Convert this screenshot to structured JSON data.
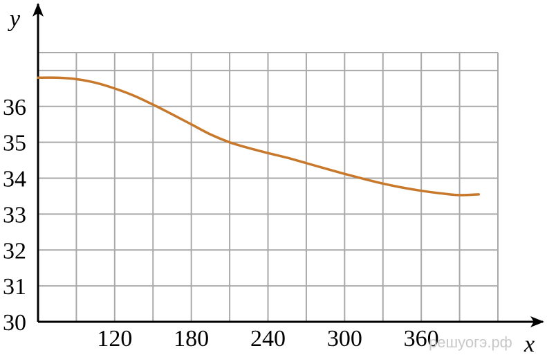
{
  "chart_data": {
    "type": "line",
    "xlabel": "x",
    "ylabel": "y",
    "xlim": [
      60,
      420
    ],
    "ylim": [
      30,
      37.5
    ],
    "grid": true,
    "x_ticks": [
      120,
      180,
      240,
      300,
      360
    ],
    "x_tick_labels": [
      "120",
      "180",
      "240",
      "300",
      "360"
    ],
    "y_ticks": [
      30,
      31,
      32,
      33,
      34,
      35,
      36
    ],
    "y_tick_labels": [
      "30",
      "31",
      "32",
      "33",
      "34",
      "35",
      "36"
    ],
    "series": [
      {
        "color": "#c8782b",
        "x": [
          60,
          75,
          90,
          105,
          120,
          135,
          150,
          165,
          180,
          195,
          210,
          225,
          240,
          255,
          270,
          285,
          300,
          315,
          330,
          345,
          360,
          375,
          390,
          405
        ],
        "y": [
          36.8,
          36.8,
          36.76,
          36.66,
          36.5,
          36.3,
          36.05,
          35.78,
          35.5,
          35.22,
          35.0,
          34.84,
          34.7,
          34.57,
          34.42,
          34.27,
          34.12,
          33.98,
          33.85,
          33.74,
          33.65,
          33.58,
          33.53,
          33.55
        ]
      }
    ],
    "watermark": "решуогэ.рф"
  }
}
